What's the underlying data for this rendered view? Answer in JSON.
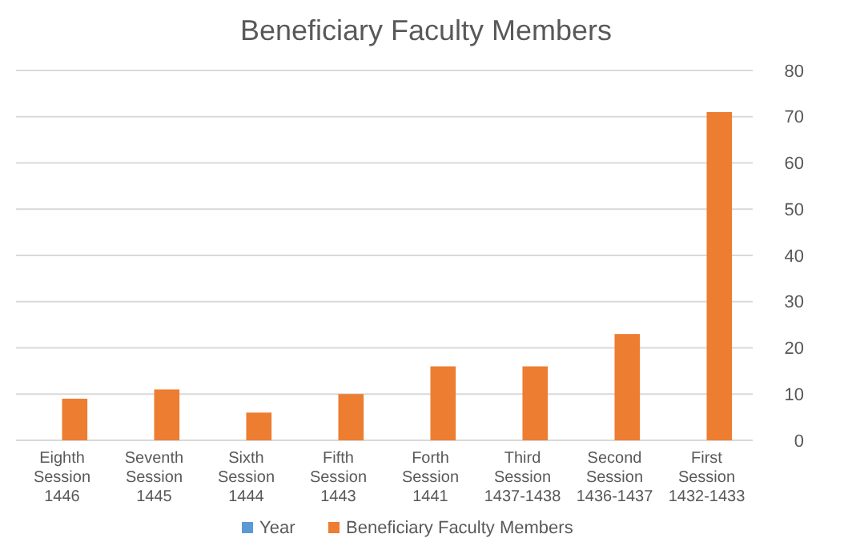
{
  "chart_data": {
    "type": "bar",
    "title": "Beneficiary Faculty Members",
    "categories": [
      "Eighth Session 1446",
      "Seventh Session 1445",
      "Sixth Session 1444",
      "Fifth Session 1443",
      "Forth Session 1441",
      "Third Session 1437-1438",
      "Second Session 1436-1437",
      "First Session 1432-1433"
    ],
    "series": [
      {
        "name": "Year",
        "color": "#5b9bd5",
        "values": [
          null,
          null,
          null,
          null,
          null,
          null,
          null,
          null
        ]
      },
      {
        "name": "Beneficiary Faculty Members",
        "color": "#ed7d31",
        "values": [
          9,
          11,
          6,
          10,
          16,
          16,
          23,
          71
        ]
      }
    ],
    "ylim": [
      0,
      80
    ],
    "yticks": [
      0,
      10,
      20,
      30,
      40,
      50,
      60,
      70,
      80
    ],
    "grid": "y",
    "legend": "bottom"
  }
}
